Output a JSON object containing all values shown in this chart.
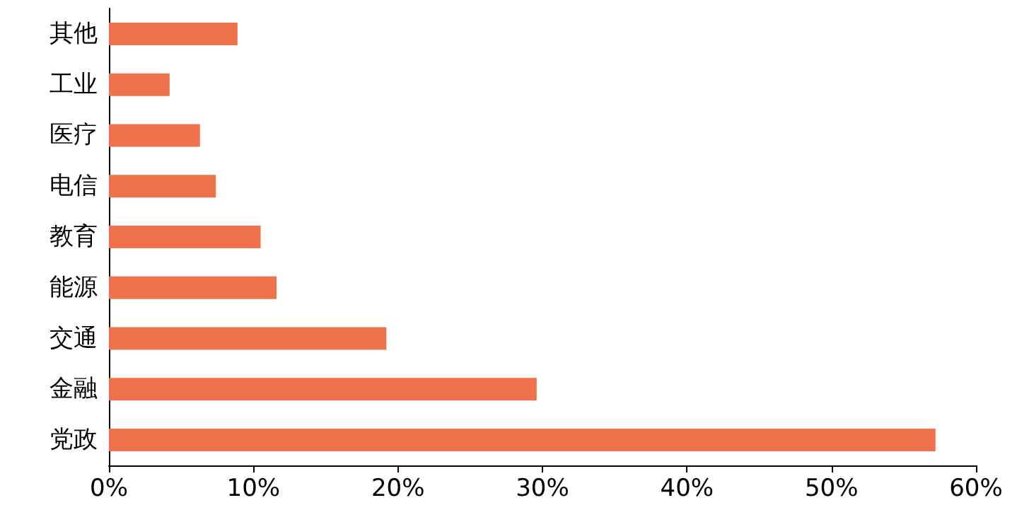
{
  "chart_data": {
    "type": "bar",
    "orientation": "horizontal",
    "categories": [
      "其他",
      "工业",
      "医疗",
      "电信",
      "教育",
      "能源",
      "交通",
      "金融",
      "党政"
    ],
    "values": [
      8.9,
      4.2,
      6.3,
      7.4,
      10.5,
      11.6,
      19.2,
      29.6,
      57.2
    ],
    "color": "#f0724c",
    "xlim": [
      0,
      60
    ],
    "xticks": [
      {
        "value": 0,
        "label": "0%"
      },
      {
        "value": 10,
        "label": "10%"
      },
      {
        "value": 20,
        "label": "20%"
      },
      {
        "value": 30,
        "label": "30%"
      },
      {
        "value": 40,
        "label": "40%"
      },
      {
        "value": 50,
        "label": "50%"
      },
      {
        "value": 60,
        "label": "60%"
      }
    ],
    "grid": false
  }
}
